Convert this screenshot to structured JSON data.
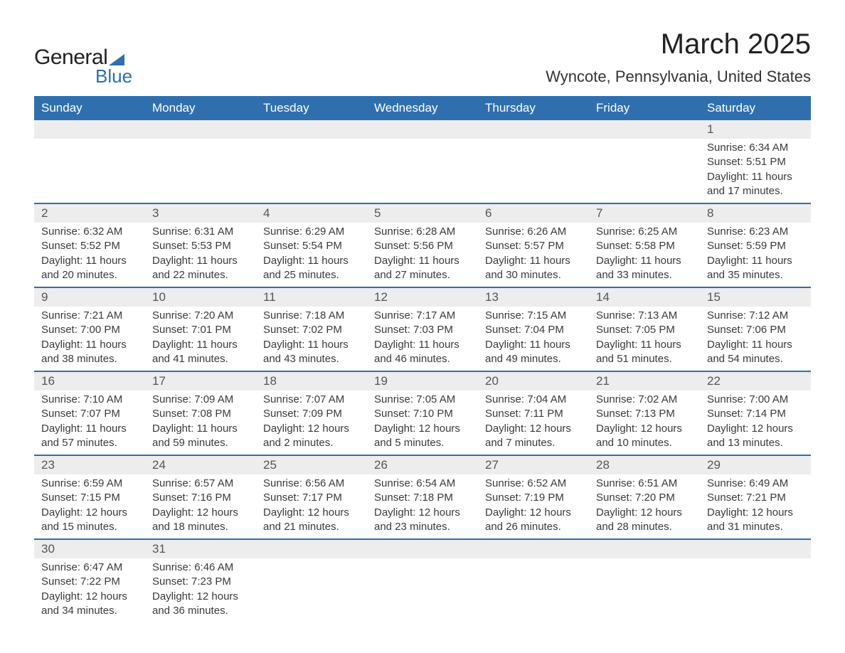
{
  "logo": {
    "text1": "General",
    "text2": "Blue",
    "accent_color": "#2f6fae"
  },
  "title": "March 2025",
  "location": "Wyncote, Pennsylvania, United States",
  "colors": {
    "header_bg": "#2f6fae",
    "header_text": "#ffffff",
    "daynum_bg": "#ededed",
    "row_divider": "#2f6fae",
    "body_text": "#3a3a3a",
    "page_bg": "#ffffff"
  },
  "typography": {
    "title_fontsize": 40,
    "location_fontsize": 22,
    "weekday_fontsize": 17,
    "daynum_fontsize": 17,
    "cell_fontsize": 15,
    "font_family": "Arial"
  },
  "layout": {
    "columns": 7,
    "rows": 6,
    "first_day_column_index": 6
  },
  "weekdays": [
    "Sunday",
    "Monday",
    "Tuesday",
    "Wednesday",
    "Thursday",
    "Friday",
    "Saturday"
  ],
  "days": [
    {
      "n": 1,
      "sunrise": "6:34 AM",
      "sunset": "5:51 PM",
      "daylight": "11 hours and 17 minutes."
    },
    {
      "n": 2,
      "sunrise": "6:32 AM",
      "sunset": "5:52 PM",
      "daylight": "11 hours and 20 minutes."
    },
    {
      "n": 3,
      "sunrise": "6:31 AM",
      "sunset": "5:53 PM",
      "daylight": "11 hours and 22 minutes."
    },
    {
      "n": 4,
      "sunrise": "6:29 AM",
      "sunset": "5:54 PM",
      "daylight": "11 hours and 25 minutes."
    },
    {
      "n": 5,
      "sunrise": "6:28 AM",
      "sunset": "5:56 PM",
      "daylight": "11 hours and 27 minutes."
    },
    {
      "n": 6,
      "sunrise": "6:26 AM",
      "sunset": "5:57 PM",
      "daylight": "11 hours and 30 minutes."
    },
    {
      "n": 7,
      "sunrise": "6:25 AM",
      "sunset": "5:58 PM",
      "daylight": "11 hours and 33 minutes."
    },
    {
      "n": 8,
      "sunrise": "6:23 AM",
      "sunset": "5:59 PM",
      "daylight": "11 hours and 35 minutes."
    },
    {
      "n": 9,
      "sunrise": "7:21 AM",
      "sunset": "7:00 PM",
      "daylight": "11 hours and 38 minutes."
    },
    {
      "n": 10,
      "sunrise": "7:20 AM",
      "sunset": "7:01 PM",
      "daylight": "11 hours and 41 minutes."
    },
    {
      "n": 11,
      "sunrise": "7:18 AM",
      "sunset": "7:02 PM",
      "daylight": "11 hours and 43 minutes."
    },
    {
      "n": 12,
      "sunrise": "7:17 AM",
      "sunset": "7:03 PM",
      "daylight": "11 hours and 46 minutes."
    },
    {
      "n": 13,
      "sunrise": "7:15 AM",
      "sunset": "7:04 PM",
      "daylight": "11 hours and 49 minutes."
    },
    {
      "n": 14,
      "sunrise": "7:13 AM",
      "sunset": "7:05 PM",
      "daylight": "11 hours and 51 minutes."
    },
    {
      "n": 15,
      "sunrise": "7:12 AM",
      "sunset": "7:06 PM",
      "daylight": "11 hours and 54 minutes."
    },
    {
      "n": 16,
      "sunrise": "7:10 AM",
      "sunset": "7:07 PM",
      "daylight": "11 hours and 57 minutes."
    },
    {
      "n": 17,
      "sunrise": "7:09 AM",
      "sunset": "7:08 PM",
      "daylight": "11 hours and 59 minutes."
    },
    {
      "n": 18,
      "sunrise": "7:07 AM",
      "sunset": "7:09 PM",
      "daylight": "12 hours and 2 minutes."
    },
    {
      "n": 19,
      "sunrise": "7:05 AM",
      "sunset": "7:10 PM",
      "daylight": "12 hours and 5 minutes."
    },
    {
      "n": 20,
      "sunrise": "7:04 AM",
      "sunset": "7:11 PM",
      "daylight": "12 hours and 7 minutes."
    },
    {
      "n": 21,
      "sunrise": "7:02 AM",
      "sunset": "7:13 PM",
      "daylight": "12 hours and 10 minutes."
    },
    {
      "n": 22,
      "sunrise": "7:00 AM",
      "sunset": "7:14 PM",
      "daylight": "12 hours and 13 minutes."
    },
    {
      "n": 23,
      "sunrise": "6:59 AM",
      "sunset": "7:15 PM",
      "daylight": "12 hours and 15 minutes."
    },
    {
      "n": 24,
      "sunrise": "6:57 AM",
      "sunset": "7:16 PM",
      "daylight": "12 hours and 18 minutes."
    },
    {
      "n": 25,
      "sunrise": "6:56 AM",
      "sunset": "7:17 PM",
      "daylight": "12 hours and 21 minutes."
    },
    {
      "n": 26,
      "sunrise": "6:54 AM",
      "sunset": "7:18 PM",
      "daylight": "12 hours and 23 minutes."
    },
    {
      "n": 27,
      "sunrise": "6:52 AM",
      "sunset": "7:19 PM",
      "daylight": "12 hours and 26 minutes."
    },
    {
      "n": 28,
      "sunrise": "6:51 AM",
      "sunset": "7:20 PM",
      "daylight": "12 hours and 28 minutes."
    },
    {
      "n": 29,
      "sunrise": "6:49 AM",
      "sunset": "7:21 PM",
      "daylight": "12 hours and 31 minutes."
    },
    {
      "n": 30,
      "sunrise": "6:47 AM",
      "sunset": "7:22 PM",
      "daylight": "12 hours and 34 minutes."
    },
    {
      "n": 31,
      "sunrise": "6:46 AM",
      "sunset": "7:23 PM",
      "daylight": "12 hours and 36 minutes."
    }
  ],
  "labels": {
    "sunrise": "Sunrise:",
    "sunset": "Sunset:",
    "daylight": "Daylight:"
  }
}
